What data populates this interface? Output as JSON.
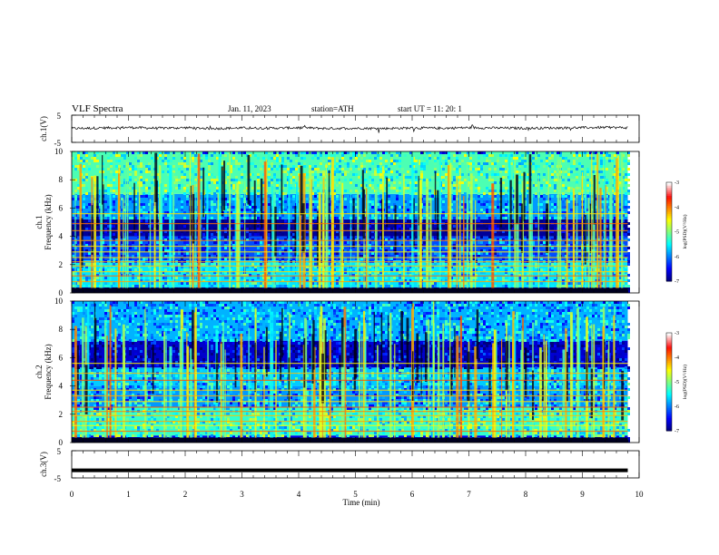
{
  "header": {
    "title": "VLF  Spectra",
    "date": "Jan. 11, 2023",
    "station": "station=ATH",
    "start": "start  UT  =   11: 20: 1"
  },
  "chart_data": [
    {
      "type": "line",
      "name": "ch1-voltage",
      "ylabel": "ch.1(V)",
      "ylim": [
        -5,
        5
      ],
      "yticks": [
        "5",
        "-5"
      ],
      "x": [
        0,
        0.5,
        1,
        1.5,
        2,
        2.5,
        3,
        3.5,
        4,
        4.5,
        5,
        5.5,
        6,
        6.5,
        7,
        7.5,
        8,
        8.5,
        9,
        9.5,
        9.8
      ],
      "y": [
        0.1,
        0.3,
        0.5,
        0.2,
        0.4,
        0.1,
        0.3,
        0.2,
        0.4,
        0.1,
        0.2,
        0.1,
        0.3,
        0.2,
        0.4,
        0.3,
        0.2,
        0.3,
        0.4,
        0.5,
        0.4
      ]
    },
    {
      "type": "heatmap",
      "name": "ch1-spectrogram",
      "ylabel": "ch.1\nFrequency  (kHz)",
      "ylim": [
        0,
        10
      ],
      "yticks": [
        "0",
        "2",
        "4",
        "6",
        "8",
        "10"
      ],
      "colorbar": {
        "label": "log(PSD)(V²/Hz)",
        "ticks": [
          "-3",
          "-4",
          "-5",
          "-6",
          "-7"
        ],
        "range": [
          -7,
          -3
        ]
      },
      "bands_khz": [
        {
          "from": 0,
          "to": 0.4,
          "level": -6.8
        },
        {
          "from": 0.4,
          "to": 2.3,
          "level": -5.6
        },
        {
          "from": 2.3,
          "to": 4.0,
          "level": -6.2
        },
        {
          "from": 4.0,
          "to": 5.2,
          "level": -6.9
        },
        {
          "from": 5.2,
          "to": 7.0,
          "level": -5.9
        },
        {
          "from": 7.0,
          "to": 10,
          "level": -5.2
        }
      ]
    },
    {
      "type": "heatmap",
      "name": "ch2-spectrogram",
      "ylabel": "ch.2\nFrequency  (kHz)",
      "ylim": [
        0,
        10
      ],
      "yticks": [
        "0",
        "2",
        "4",
        "6",
        "8",
        "10"
      ],
      "colorbar": {
        "label": "log(PSD)(V²/Hz)",
        "ticks": [
          "-3",
          "-4",
          "-5",
          "-6",
          "-7"
        ],
        "range": [
          -7,
          -3
        ]
      },
      "bands_khz": [
        {
          "from": 0,
          "to": 0.5,
          "level": -6.6
        },
        {
          "from": 0.5,
          "to": 2.5,
          "level": -5.3
        },
        {
          "from": 2.5,
          "to": 4.0,
          "level": -5.9
        },
        {
          "from": 4.0,
          "to": 5.3,
          "level": -5.7
        },
        {
          "from": 5.3,
          "to": 7.2,
          "level": -6.7
        },
        {
          "from": 7.2,
          "to": 10,
          "level": -5.8
        }
      ]
    },
    {
      "type": "line",
      "name": "ch3-voltage",
      "ylabel": "ch.3(V)",
      "ylim": [
        -5,
        5
      ],
      "yticks": [
        "5",
        "-5"
      ],
      "x": [
        0,
        9.8
      ],
      "y": [
        -2.2,
        -2.2
      ]
    }
  ],
  "xaxis": {
    "label": "Time  (min)",
    "range": [
      0,
      10
    ],
    "ticks": [
      "0",
      "1",
      "2",
      "3",
      "4",
      "5",
      "6",
      "7",
      "8",
      "9",
      "10"
    ]
  },
  "colors": {
    "jet_low": "#00007f",
    "jet_mid": "#00ff80",
    "jet_high": "#ff0000",
    "colorbar_top": "#ffffff"
  }
}
